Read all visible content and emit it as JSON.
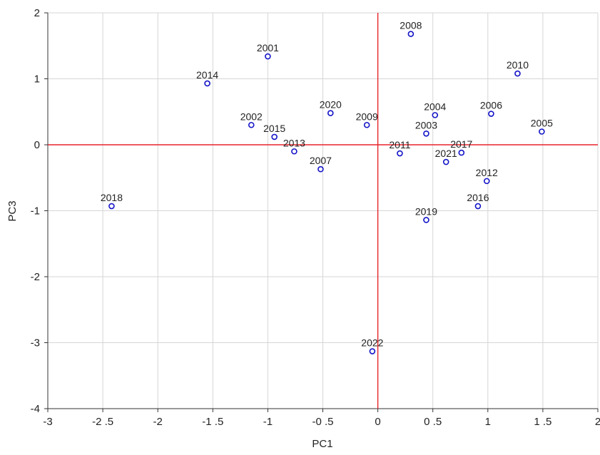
{
  "chart_data": {
    "type": "scatter",
    "title": "",
    "xlabel": "PC1",
    "ylabel": "PC3",
    "xlim": [
      -3,
      2
    ],
    "ylim": [
      -4,
      2
    ],
    "x_ticks": [
      -3,
      -2.5,
      -2,
      -1.5,
      -1,
      -0.5,
      0,
      0.5,
      1,
      1.5,
      2
    ],
    "x_tick_labels": [
      "-3",
      "-2 .5",
      "-2",
      "-1 .5",
      "-1",
      "-0 .5",
      "0",
      "0 .5",
      "1",
      "1 .5",
      "2"
    ],
    "y_ticks": [
      -4,
      -3,
      -2,
      -1,
      0,
      1,
      2
    ],
    "y_tick_labels": [
      "-4",
      "-3",
      "-2",
      "-1",
      "0",
      "1",
      "2"
    ],
    "grid": true,
    "reference_lines": {
      "x": 0,
      "y": 0,
      "color": "#e8242b"
    },
    "marker_color": "#1414c8",
    "points": [
      {
        "label": "2001",
        "x": -1.0,
        "y": 1.34
      },
      {
        "label": "2002",
        "x": -1.15,
        "y": 0.3
      },
      {
        "label": "2003",
        "x": 0.44,
        "y": 0.17
      },
      {
        "label": "2004",
        "x": 0.52,
        "y": 0.45
      },
      {
        "label": "2005",
        "x": 1.49,
        "y": 0.2
      },
      {
        "label": "2006",
        "x": 1.03,
        "y": 0.47
      },
      {
        "label": "2007",
        "x": -0.52,
        "y": -0.37
      },
      {
        "label": "2008",
        "x": 0.3,
        "y": 1.68
      },
      {
        "label": "2009",
        "x": -0.1,
        "y": 0.3
      },
      {
        "label": "2010",
        "x": 1.27,
        "y": 1.08
      },
      {
        "label": "2011",
        "x": 0.2,
        "y": -0.13
      },
      {
        "label": "2012",
        "x": 0.99,
        "y": -0.55
      },
      {
        "label": "2013",
        "x": -0.76,
        "y": -0.1
      },
      {
        "label": "2014",
        "x": -1.55,
        "y": 0.93
      },
      {
        "label": "2015",
        "x": -0.94,
        "y": 0.12
      },
      {
        "label": "2016",
        "x": 0.91,
        "y": -0.93
      },
      {
        "label": "2017",
        "x": 0.76,
        "y": -0.12
      },
      {
        "label": "2018",
        "x": -2.42,
        "y": -0.93
      },
      {
        "label": "2019",
        "x": 0.44,
        "y": -1.14
      },
      {
        "label": "2020",
        "x": -0.43,
        "y": 0.48
      },
      {
        "label": "2021",
        "x": 0.62,
        "y": -0.26
      },
      {
        "label": "2022",
        "x": -0.05,
        "y": -3.13
      }
    ]
  }
}
